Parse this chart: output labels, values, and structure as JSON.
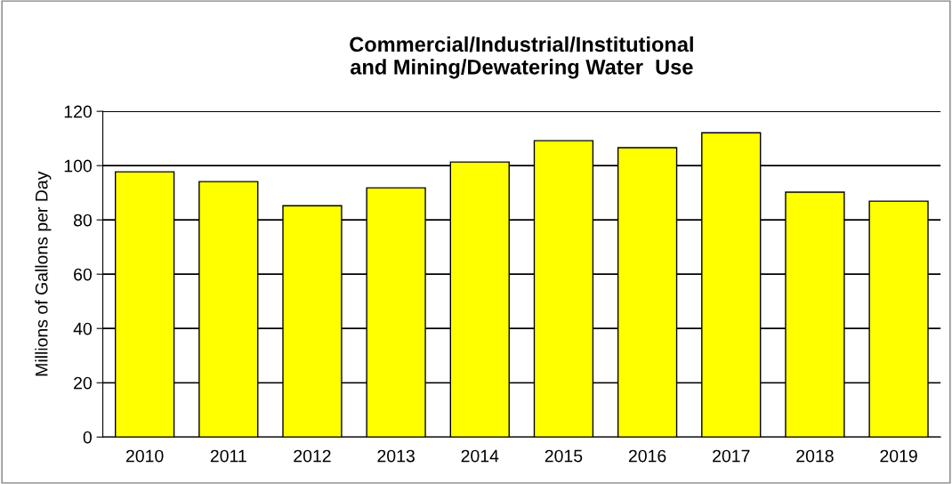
{
  "chart_data": {
    "type": "bar",
    "title": "Commercial/Industrial/Institutional\nand Mining/Dewatering Water  Use",
    "ylabel": "Millions of Gallons per Day",
    "categories": [
      "2010",
      "2011",
      "2012",
      "2013",
      "2014",
      "2015",
      "2016",
      "2017",
      "2018",
      "2019"
    ],
    "values": [
      97.7,
      94.1,
      85.2,
      91.8,
      101.3,
      109.2,
      106.6,
      112.1,
      90.2,
      86.9
    ],
    "color": "#ffff00",
    "ylim": [
      0,
      120
    ],
    "yticks": [
      0,
      20,
      40,
      60,
      80,
      100,
      120
    ],
    "grid": "y",
    "legend": false
  }
}
